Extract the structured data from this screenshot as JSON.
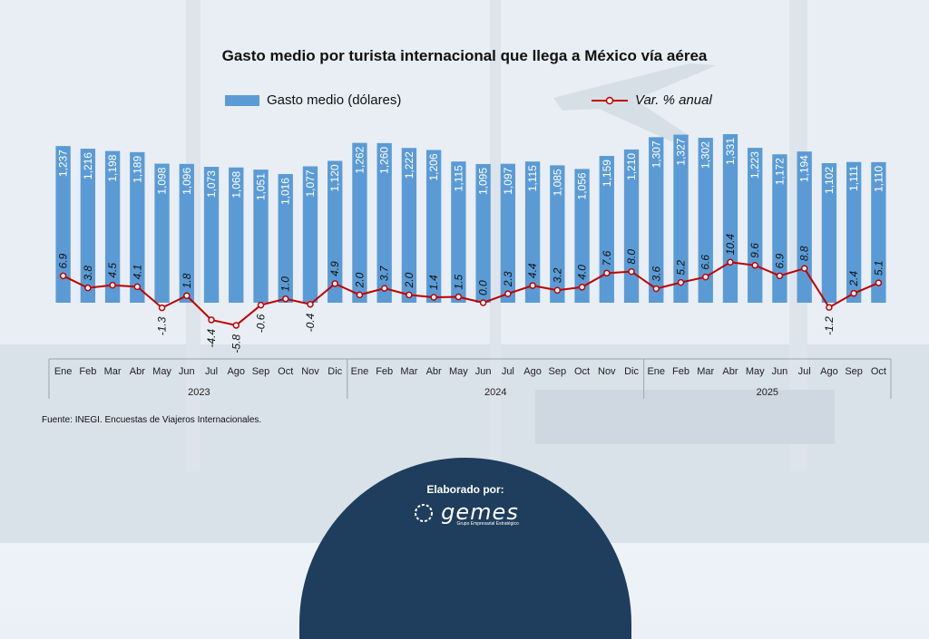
{
  "title": "Gasto medio por turista internacional que llega a México vía aérea",
  "legend": {
    "bars": "Gasto medio (dólares)",
    "line": "Var. % anual"
  },
  "source": "Fuente: INEGI. Encuestas de Viajeros Internacionales.",
  "footer": {
    "by": "Elaborado por:",
    "logo_name": "gemes",
    "logo_sub": "Grupo Empresarial Estratégico"
  },
  "colors": {
    "bar": "#5b9bd5",
    "line": "#c00000"
  },
  "chart_data": {
    "type": "bar",
    "title": "Gasto medio por turista internacional que llega a México vía aérea",
    "categories": [
      "Ene",
      "Feb",
      "Mar",
      "Abr",
      "May",
      "Jun",
      "Jul",
      "Ago",
      "Sep",
      "Oct",
      "Nov",
      "Dic",
      "Ene",
      "Feb",
      "Mar",
      "Abr",
      "May",
      "Jun",
      "Jul",
      "Ago",
      "Sep",
      "Oct",
      "Nov",
      "Dic",
      "Ene",
      "Feb",
      "Mar",
      "Abr",
      "May",
      "Jun",
      "Jul",
      "Ago",
      "Sep",
      "Oct"
    ],
    "groups": [
      {
        "label": "2023",
        "count": 12
      },
      {
        "label": "2024",
        "count": 12
      },
      {
        "label": "2025",
        "count": 10
      }
    ],
    "series": [
      {
        "name": "Gasto medio (dólares)",
        "type": "bar",
        "values": [
          1237,
          1216,
          1198,
          1189,
          1098,
          1096,
          1073,
          1068,
          1051,
          1016,
          1077,
          1120,
          1262,
          1260,
          1222,
          1206,
          1115,
          1095,
          1097,
          1115,
          1085,
          1056,
          1159,
          1210,
          1307,
          1327,
          1302,
          1331,
          1223,
          1172,
          1194,
          1102,
          1111,
          1110
        ],
        "labels": [
          "1,237",
          "1,216",
          "1,198",
          "1,189",
          "1,098",
          "1,096",
          "1,073",
          "1,068",
          "1,051",
          "1,016",
          "1,077",
          "1,120",
          "1,262",
          "1,260",
          "1,222",
          "1,206",
          "1,115",
          "1,095",
          "1,097",
          "1,115",
          "1,085",
          "1,056",
          "1,159",
          "1,210",
          "1,307",
          "1,327",
          "1,302",
          "1,331",
          "1,223",
          "1,172",
          "1,194",
          "1,102",
          "1,111",
          "1,110"
        ]
      },
      {
        "name": "Var. % anual",
        "type": "line",
        "values": [
          6.9,
          3.8,
          4.5,
          4.1,
          -1.3,
          1.8,
          -4.4,
          -5.8,
          -0.6,
          1.0,
          -0.4,
          4.9,
          2.0,
          3.7,
          2.0,
          1.4,
          1.5,
          0.0,
          2.3,
          4.4,
          3.2,
          4.0,
          7.6,
          8.0,
          3.6,
          5.2,
          6.6,
          10.4,
          9.6,
          6.9,
          8.8,
          -1.2,
          2.4,
          5.1
        ],
        "labels": [
          "6.9",
          "3.8",
          "4.5",
          "4.1",
          "-1.3",
          "1.8",
          "-4.4",
          "-5.8",
          "-0.6",
          "1.0",
          "-0.4",
          "4.9",
          "2.0",
          "3.7",
          "2.0",
          "1.4",
          "1.5",
          "0.0",
          "2.3",
          "4.4",
          "3.2",
          "4.0",
          "7.6",
          "8.0",
          "3.6",
          "5.2",
          "6.6",
          "10.4",
          "9.6",
          "6.9",
          "8.8",
          "-1.2",
          "2.4",
          "5.1"
        ]
      }
    ],
    "ylim_bars": [
      0,
      1400
    ],
    "ylim_line": [
      -10,
      16
    ],
    "legend_position": "top"
  }
}
